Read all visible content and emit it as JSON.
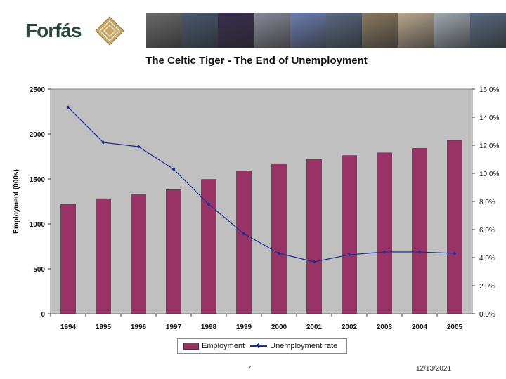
{
  "header": {
    "logo_text": "Forfás",
    "photos": [
      "#6a6a6a",
      "#4a5a70",
      "#3a3050",
      "#8a8a98",
      "#6d7fb0",
      "#5a6880",
      "#8a7a60",
      "#b8a890",
      "#a0a8b0",
      "#5a6a80"
    ]
  },
  "chart_data": {
    "type": "bar",
    "title": "The Celtic Tiger - The End of Unemployment",
    "categories": [
      "1994",
      "1995",
      "1996",
      "1997",
      "1998",
      "1999",
      "2000",
      "2001",
      "2002",
      "2003",
      "2004",
      "2005"
    ],
    "ylabel": "Employment (000s)",
    "ylim": [
      0,
      2500
    ],
    "yticks": [
      "0",
      "500",
      "1000",
      "1500",
      "2000",
      "2500"
    ],
    "y2lim": [
      0,
      16
    ],
    "y2ticks": [
      "0.0%",
      "2.0%",
      "4.0%",
      "6.0%",
      "8.0%",
      "10.0%",
      "12.0%",
      "14.0%",
      "16.0%"
    ],
    "grid": false,
    "legend": "bottom",
    "series": [
      {
        "name": "Employment",
        "type": "bar",
        "axis": "left",
        "color": "#993366",
        "values": [
          1220,
          1280,
          1330,
          1380,
          1495,
          1590,
          1670,
          1720,
          1760,
          1790,
          1840,
          1930
        ]
      },
      {
        "name": "Unemployment rate",
        "type": "line",
        "axis": "right",
        "color": "#1f2f8f",
        "values": [
          14.7,
          12.2,
          11.9,
          10.3,
          7.8,
          5.7,
          4.3,
          3.7,
          4.2,
          4.4,
          4.4,
          4.3
        ]
      }
    ]
  },
  "footer": {
    "slide_number": "7",
    "date": "12/13/2021"
  }
}
